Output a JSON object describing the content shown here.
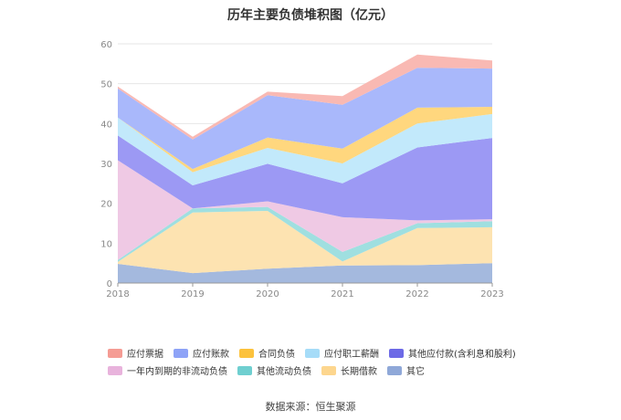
{
  "chart_data": {
    "type": "area",
    "stacked": true,
    "title": "历年主要负债堆积图（亿元）",
    "xlabel": "",
    "ylabel": "",
    "x": [
      "2018",
      "2019",
      "2020",
      "2021",
      "2022",
      "2023"
    ],
    "ylim": [
      0,
      60
    ],
    "yticks": [
      "0",
      "10",
      "20",
      "30",
      "40",
      "50",
      "60"
    ],
    "grid": true,
    "legend_position": "bottom",
    "series": [
      {
        "name": "其它",
        "color": "#a4b9de",
        "values": [
          4.8,
          2.5,
          3.6,
          4.4,
          4.5,
          5.0
        ]
      },
      {
        "name": "长期借款",
        "color": "#fde3b1",
        "values": [
          0.5,
          15.2,
          14.5,
          1.0,
          9.3,
          9.0
        ]
      },
      {
        "name": "其他流动负债",
        "color": "#9fdfe0",
        "values": [
          0.5,
          1.0,
          1.0,
          2.4,
          1.2,
          1.5
        ]
      },
      {
        "name": "一年内到期的非流动负债",
        "color": "#efc9e4",
        "values": [
          25.0,
          0.0,
          1.4,
          8.7,
          0.7,
          0.5
        ]
      },
      {
        "name": "其他应付款(含利息和股利)",
        "color": "#9c99f4",
        "values": [
          6.2,
          5.8,
          9.4,
          8.5,
          18.3,
          20.4
        ]
      },
      {
        "name": "应付职工薪酬",
        "color": "#c2e9fb",
        "values": [
          4.5,
          3.3,
          4.0,
          5.0,
          6.0,
          6.0
        ]
      },
      {
        "name": "合同负债",
        "color": "#ffd77e",
        "values": [
          0.0,
          0.8,
          2.6,
          3.7,
          4.0,
          1.8
        ]
      },
      {
        "name": "应付账款",
        "color": "#a9b8fb",
        "values": [
          7.3,
          7.4,
          10.6,
          11.0,
          10.0,
          9.6
        ]
      },
      {
        "name": "应付票据",
        "color": "#f9b9b3",
        "values": [
          0.5,
          0.7,
          0.9,
          2.2,
          3.3,
          2.0
        ]
      }
    ]
  },
  "legend_rows": [
    [
      {
        "label": "应付票据",
        "color": "#f59c94"
      },
      {
        "label": "应付账款",
        "color": "#8ea3f7"
      },
      {
        "label": "合同负债",
        "color": "#fcc23c"
      },
      {
        "label": "应付职工薪酬",
        "color": "#a6dcf8"
      },
      {
        "label": "其他应付款(含利息和股利)",
        "color": "#6d6ae6"
      }
    ],
    [
      {
        "label": "一年内到期的非流动负债",
        "color": "#e8b3dc"
      },
      {
        "label": "其他流动负债",
        "color": "#6fcfd0"
      },
      {
        "label": "长期借款",
        "color": "#fdd68e"
      },
      {
        "label": "其它",
        "color": "#8fa8d8"
      }
    ]
  ],
  "source": "数据来源：恒生聚源"
}
